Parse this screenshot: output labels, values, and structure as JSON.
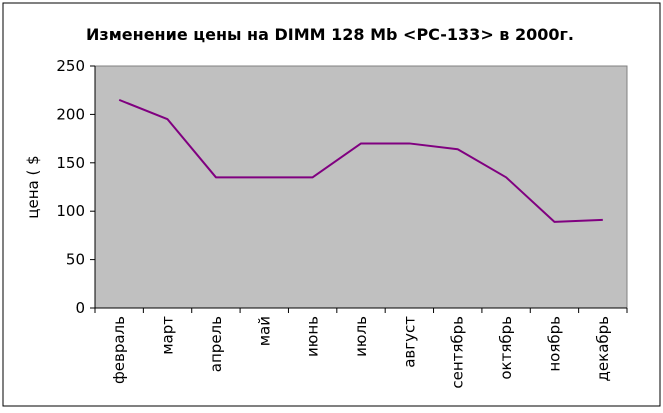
{
  "chart_data": {
    "type": "line",
    "title": "Изменение цены на DIMM 128 Mb <PC-133> в 2000г.",
    "xlabel": "",
    "ylabel": "цена ( $",
    "categories": [
      "февраль",
      "март",
      "апрель",
      "май",
      "июнь",
      "июль",
      "август",
      "сентябрь",
      "октябрь",
      "ноябрь",
      "декабрь"
    ],
    "series": [
      {
        "values": [
          215,
          195,
          135,
          135,
          135,
          170,
          170,
          164,
          135,
          89,
          91
        ]
      }
    ],
    "yticks": [
      "0",
      "50",
      "100",
      "150",
      "200",
      "250"
    ],
    "ylim": [
      0,
      250
    ],
    "grid": false,
    "legend": "none",
    "colors": {
      "line": "#800080",
      "plot_background": "#c0c0c0",
      "frame": "#000000"
    }
  }
}
